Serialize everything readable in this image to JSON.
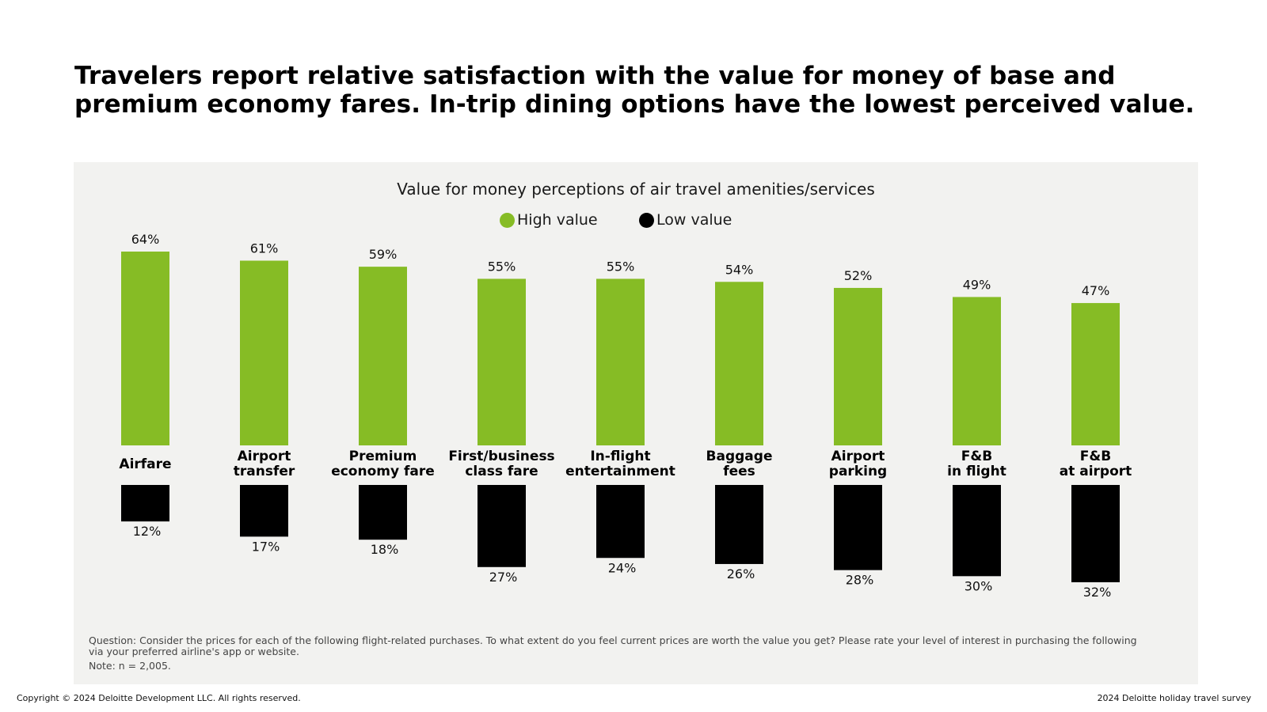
{
  "headline": "Travelers report relative satisfaction with the value for money of base and premium economy fares. In-trip dining options have the lowest perceived value.",
  "colors": {
    "high": "#86bc25",
    "low": "#000000",
    "panel": "#f2f2f0"
  },
  "chart_data": {
    "type": "bar",
    "title": "Value for money perceptions of air travel amenities/services",
    "legend": [
      {
        "name": "High value",
        "color": "#86bc25"
      },
      {
        "name": "Low value",
        "color": "#000000"
      }
    ],
    "categories": [
      [
        "Airfare"
      ],
      [
        "Airport",
        "transfer"
      ],
      [
        "Premium",
        "economy fare"
      ],
      [
        "First/business",
        "class fare"
      ],
      [
        "In-flight",
        "entertainment"
      ],
      [
        "Baggage",
        "fees"
      ],
      [
        "Airport",
        "parking"
      ],
      [
        "F&B",
        "in flight"
      ],
      [
        "F&B",
        "at airport"
      ]
    ],
    "series": [
      {
        "name": "High value",
        "values": [
          64,
          61,
          59,
          55,
          55,
          54,
          52,
          49,
          47
        ],
        "labels": [
          "64%",
          "61%",
          "59%",
          "55%",
          "55%",
          "54%",
          "52%",
          "49%",
          "47%"
        ]
      },
      {
        "name": "Low value",
        "values": [
          12,
          17,
          18,
          27,
          24,
          26,
          28,
          30,
          32
        ],
        "labels": [
          "12%",
          "17%",
          "18%",
          "27%",
          "24%",
          "26%",
          "28%",
          "30%",
          "32%"
        ]
      }
    ],
    "unit": "%",
    "ylim": [
      0,
      100
    ]
  },
  "footnote": {
    "question": "Question: Consider the prices for each of the following flight-related purchases. To what extent do you feel current prices are worth the value you get? Please rate your level of interest in purchasing the following via your preferred airline's app or website.",
    "note": "Note: n = 2,005."
  },
  "footer": {
    "copyright": "Copyright © 2024 Deloitte Development LLC. All rights reserved.",
    "source": "2024 Deloitte holiday travel survey"
  }
}
